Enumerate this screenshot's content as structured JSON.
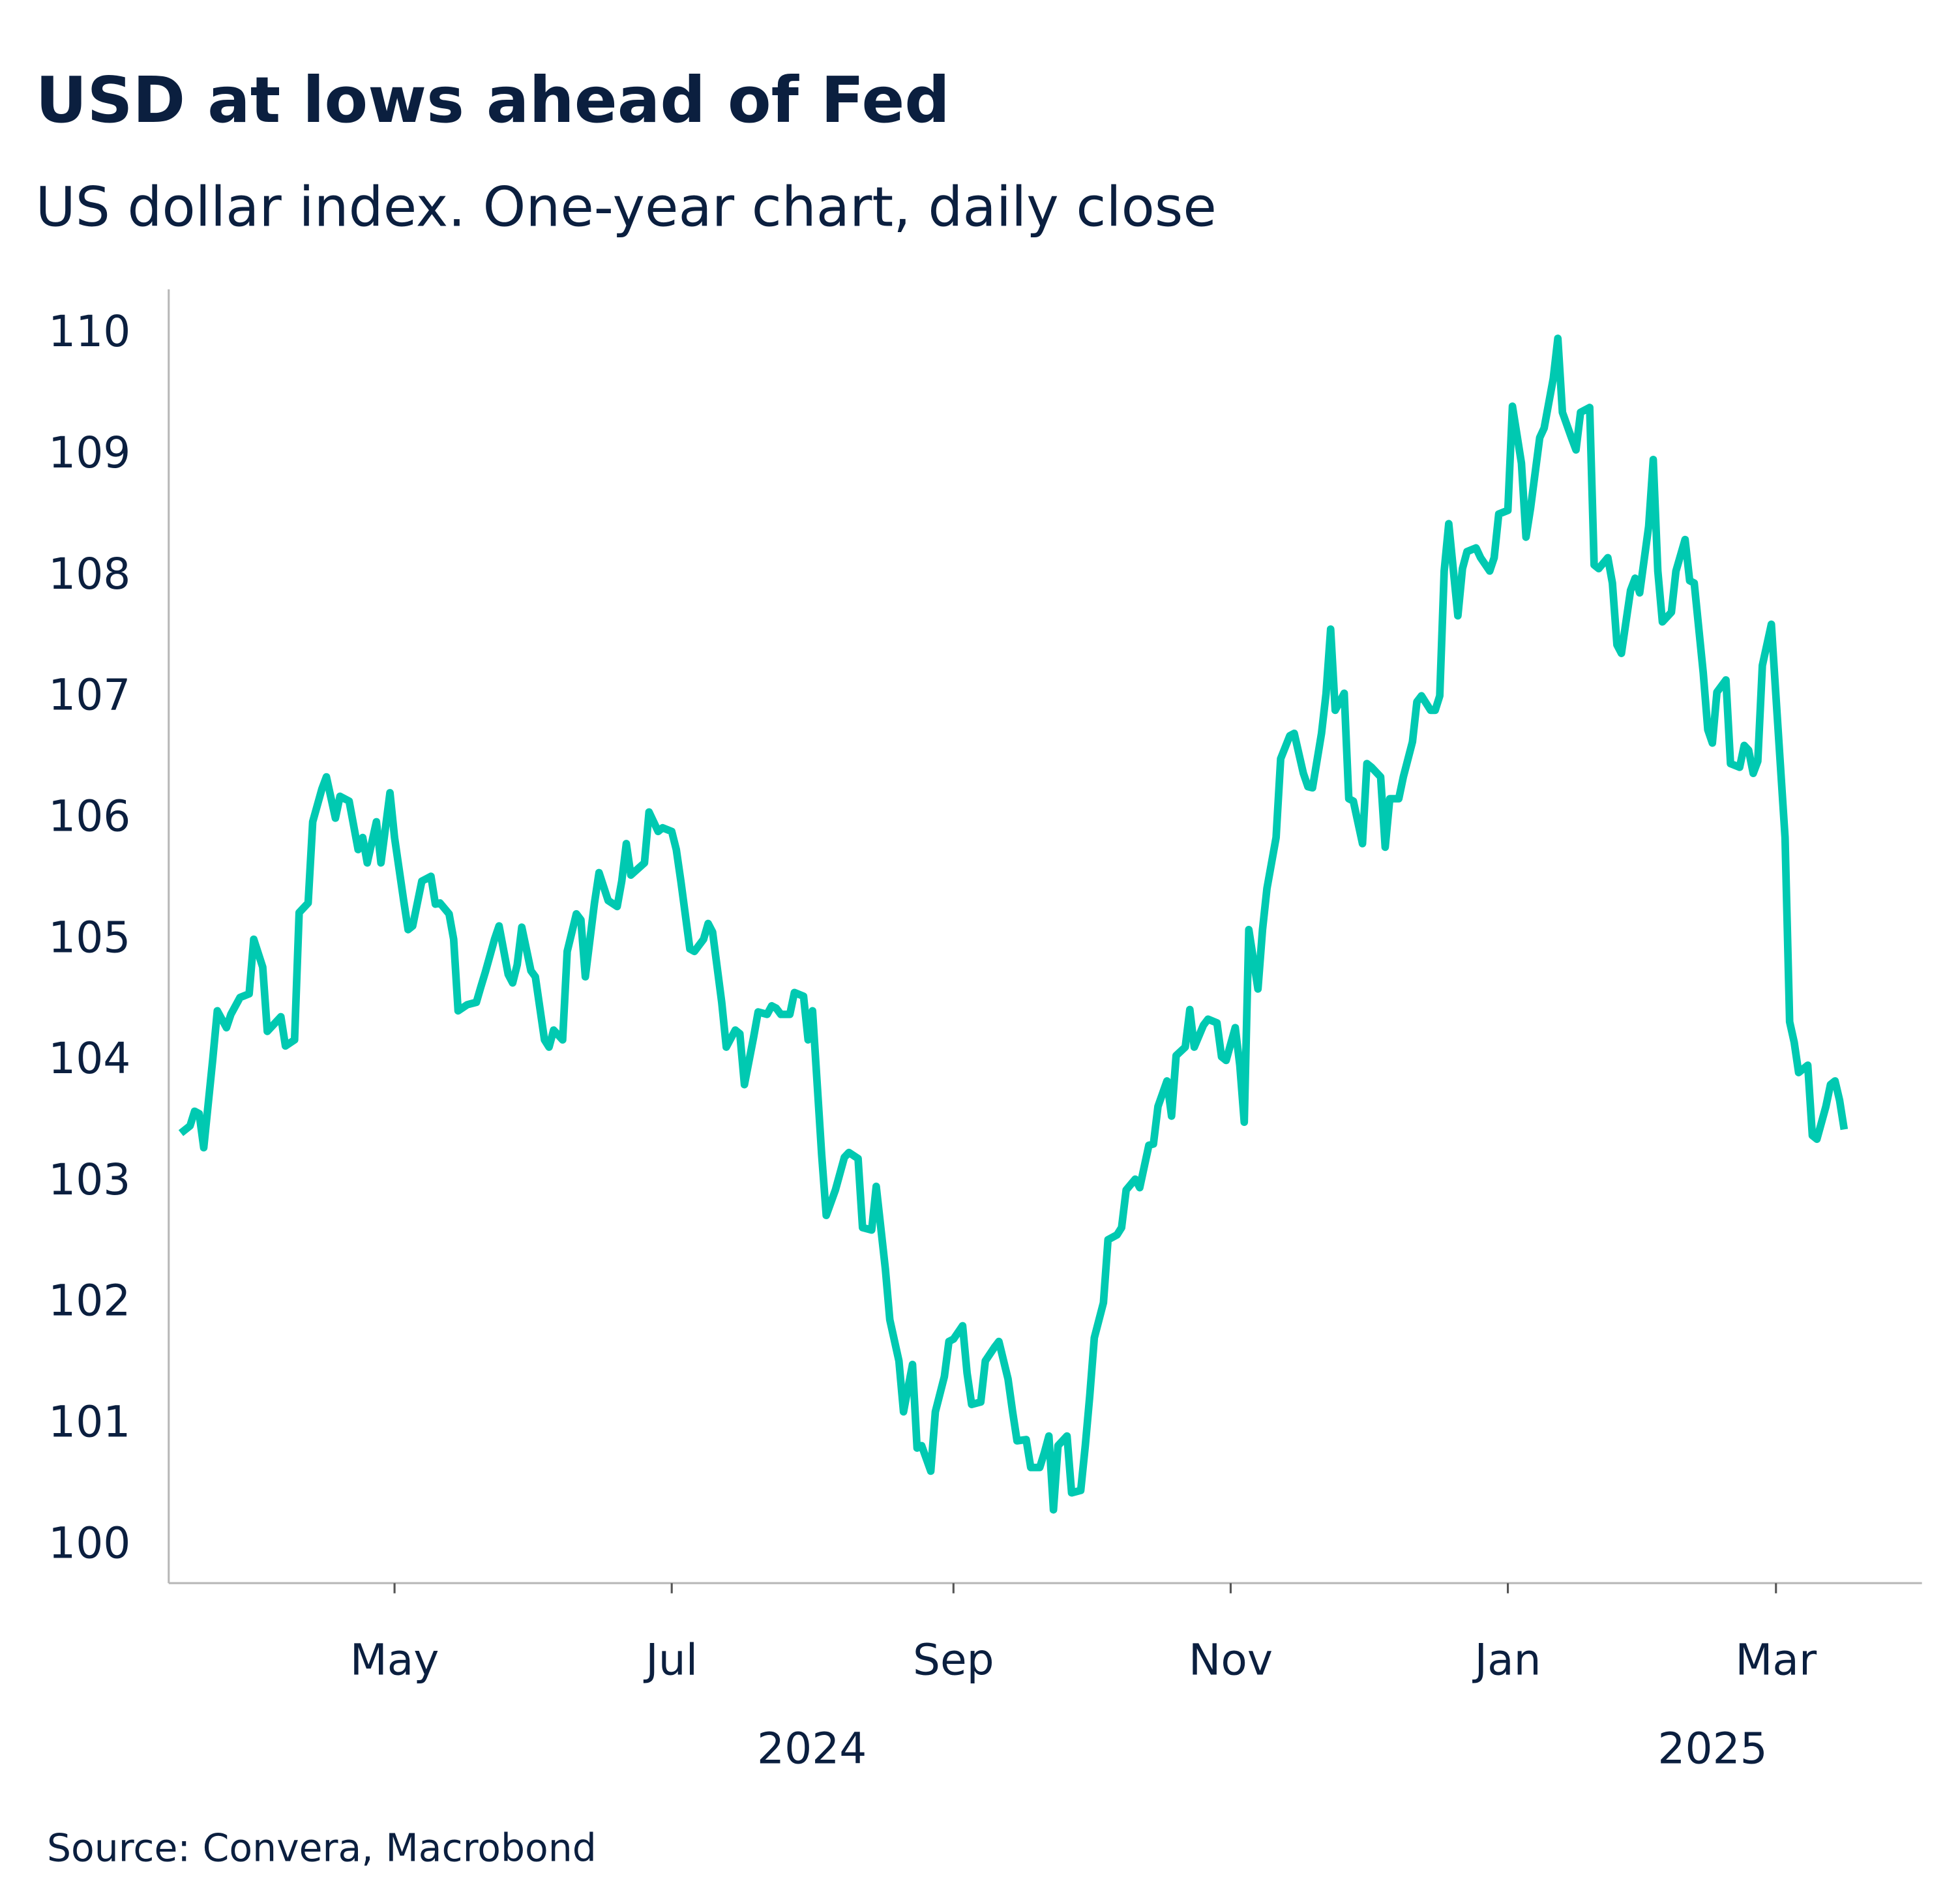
{
  "chart_data": {
    "type": "line",
    "title": "USD at lows ahead of Fed",
    "subtitle": "US dollar index. One-year chart, daily close",
    "source": "Source: Convera, Macrobond",
    "xlabel": "",
    "ylabel": "",
    "ylim": [
      100,
      110
    ],
    "yticks": [
      "100",
      "101",
      "102",
      "103",
      "104",
      "105",
      "106",
      "107",
      "108",
      "109",
      "110"
    ],
    "xticks": [
      {
        "date": "2024-05-01",
        "label": "May"
      },
      {
        "date": "2024-07-01",
        "label": "Jul"
      },
      {
        "date": "2024-09-01",
        "label": "Sep"
      },
      {
        "date": "2024-11-01",
        "label": "Nov"
      },
      {
        "date": "2025-01-01",
        "label": "Jan"
      },
      {
        "date": "2025-03-01",
        "label": "Mar"
      }
    ],
    "year_labels": [
      {
        "date": "2024-08-01",
        "label": "2024"
      },
      {
        "date": "2025-03-01",
        "label": "2025"
      }
    ],
    "grid": false,
    "line_color": "#00c9b1",
    "text_color": "#0b1f3f",
    "series": [
      {
        "dates": [
          "2024-03-15",
          "2024-03-17",
          "2024-03-18",
          "2024-03-19",
          "2024-03-20",
          "2024-03-22",
          "2024-03-23",
          "2024-03-25",
          "2024-03-26",
          "2024-03-28",
          "2024-03-30",
          "2024-03-31",
          "2024-04-02",
          "2024-04-03",
          "2024-04-06",
          "2024-04-07",
          "2024-04-09",
          "2024-04-10",
          "2024-04-12",
          "2024-04-13",
          "2024-04-15",
          "2024-04-16",
          "2024-04-18",
          "2024-04-19",
          "2024-04-21",
          "2024-04-23",
          "2024-04-24",
          "2024-04-25",
          "2024-04-27",
          "2024-04-28",
          "2024-04-30",
          "2024-05-01",
          "2024-05-03",
          "2024-05-04",
          "2024-05-05",
          "2024-05-07",
          "2024-05-09",
          "2024-05-10",
          "2024-05-11",
          "2024-05-13",
          "2024-05-14",
          "2024-05-15",
          "2024-05-17",
          "2024-05-19",
          "2024-05-20",
          "2024-05-21",
          "2024-05-23",
          "2024-05-24",
          "2024-05-26",
          "2024-05-27",
          "2024-05-28",
          "2024-05-29",
          "2024-05-31",
          "2024-06-01",
          "2024-06-03",
          "2024-06-04",
          "2024-06-05",
          "2024-06-07",
          "2024-06-08",
          "2024-06-10",
          "2024-06-11",
          "2024-06-12",
          "2024-06-14",
          "2024-06-15",
          "2024-06-17",
          "2024-06-19",
          "2024-06-20",
          "2024-06-21",
          "2024-06-22",
          "2024-06-25",
          "2024-06-26",
          "2024-06-28",
          "2024-06-29",
          "2024-07-01",
          "2024-07-02",
          "2024-07-03",
          "2024-07-05",
          "2024-07-06",
          "2024-07-08",
          "2024-07-09",
          "2024-07-10",
          "2024-07-12",
          "2024-07-13",
          "2024-07-15",
          "2024-07-16",
          "2024-07-17",
          "2024-07-19",
          "2024-07-20",
          "2024-07-22",
          "2024-07-23",
          "2024-07-24",
          "2024-07-25",
          "2024-07-27",
          "2024-07-28",
          "2024-07-30",
          "2024-07-31",
          "2024-08-01",
          "2024-08-03",
          "2024-08-04",
          "2024-08-06",
          "2024-08-08",
          "2024-08-09",
          "2024-08-11",
          "2024-08-12",
          "2024-08-14",
          "2024-08-15",
          "2024-08-17",
          "2024-08-18",
          "2024-08-20",
          "2024-08-21",
          "2024-08-23",
          "2024-08-24",
          "2024-08-25",
          "2024-08-27",
          "2024-08-28",
          "2024-08-30",
          "2024-08-31",
          "2024-09-01",
          "2024-09-03",
          "2024-09-04",
          "2024-09-05",
          "2024-09-07",
          "2024-09-08",
          "2024-09-10",
          "2024-09-11",
          "2024-09-13",
          "2024-09-14",
          "2024-09-15",
          "2024-09-17",
          "2024-09-18",
          "2024-09-20",
          "2024-09-21",
          "2024-09-22",
          "2024-09-23",
          "2024-09-24",
          "2024-09-26",
          "2024-09-27",
          "2024-09-29",
          "2024-09-30",
          "2024-10-01",
          "2024-10-02",
          "2024-10-04",
          "2024-10-05",
          "2024-10-07",
          "2024-10-08",
          "2024-10-09",
          "2024-10-11",
          "2024-10-12",
          "2024-10-14",
          "2024-10-15",
          "2024-10-16",
          "2024-10-18",
          "2024-10-19",
          "2024-10-20",
          "2024-10-22",
          "2024-10-23",
          "2024-10-24",
          "2024-10-26",
          "2024-10-27",
          "2024-10-29",
          "2024-10-30",
          "2024-10-31",
          "2024-11-02",
          "2024-11-03",
          "2024-11-04",
          "2024-11-05",
          "2024-11-07",
          "2024-11-08",
          "2024-11-09",
          "2024-11-11",
          "2024-11-12",
          "2024-11-14",
          "2024-11-15",
          "2024-11-17",
          "2024-11-18",
          "2024-11-19",
          "2024-11-21",
          "2024-11-22",
          "2024-11-23",
          "2024-11-24",
          "2024-11-26",
          "2024-11-27",
          "2024-11-28",
          "2024-11-30",
          "2024-12-01",
          "2024-12-02",
          "2024-12-04",
          "2024-12-05",
          "2024-12-06",
          "2024-12-08",
          "2024-12-09",
          "2024-12-11",
          "2024-12-12",
          "2024-12-13",
          "2024-12-15",
          "2024-12-16",
          "2024-12-17",
          "2024-12-18",
          "2024-12-19",
          "2024-12-21",
          "2024-12-22",
          "2024-12-23",
          "2024-12-25",
          "2024-12-26",
          "2024-12-28",
          "2024-12-29",
          "2024-12-30",
          "2025-01-01",
          "2025-01-02",
          "2025-01-04",
          "2025-01-05",
          "2025-01-06",
          "2025-01-08",
          "2025-01-09",
          "2025-01-11",
          "2025-01-12",
          "2025-01-13",
          "2025-01-15",
          "2025-01-16",
          "2025-01-17",
          "2025-01-19",
          "2025-01-20",
          "2025-01-21",
          "2025-01-23",
          "2025-01-24",
          "2025-01-25",
          "2025-01-26",
          "2025-01-28",
          "2025-01-29",
          "2025-01-30",
          "2025-02-01",
          "2025-02-02",
          "2025-02-03",
          "2025-02-04",
          "2025-02-06",
          "2025-02-07",
          "2025-02-09",
          "2025-02-10",
          "2025-02-11",
          "2025-02-13",
          "2025-02-14",
          "2025-02-15",
          "2025-02-16",
          "2025-02-18",
          "2025-02-19",
          "2025-02-21",
          "2025-02-22",
          "2025-02-23",
          "2025-02-24",
          "2025-02-25",
          "2025-02-26",
          "2025-02-28",
          "2025-03-01",
          "2025-03-03",
          "2025-03-04",
          "2025-03-05",
          "2025-03-06",
          "2025-03-08",
          "2025-03-09",
          "2025-03-10",
          "2025-03-12",
          "2025-03-13",
          "2025-03-14",
          "2025-03-15",
          "2025-03-16"
        ],
        "values": [
          103.38,
          103.44,
          103.56,
          103.54,
          103.26,
          103.99,
          104.39,
          104.25,
          104.36,
          104.5,
          104.53,
          104.98,
          104.75,
          104.22,
          104.34,
          104.1,
          104.15,
          105.2,
          105.28,
          105.95,
          106.22,
          106.32,
          105.98,
          106.16,
          106.12,
          105.72,
          105.82,
          105.61,
          105.95,
          105.61,
          106.19,
          105.82,
          105.3,
          105.06,
          105.09,
          105.46,
          105.5,
          105.27,
          105.28,
          105.19,
          104.98,
          104.39,
          104.44,
          104.46,
          104.59,
          104.71,
          104.98,
          105.09,
          104.69,
          104.62,
          104.77,
          105.08,
          104.72,
          104.67,
          104.15,
          104.09,
          104.23,
          104.15,
          104.88,
          105.19,
          105.14,
          104.67,
          105.28,
          105.53,
          105.3,
          105.25,
          105.46,
          105.77,
          105.51,
          105.61,
          106.03,
          105.87,
          105.9,
          105.87,
          105.72,
          105.46,
          104.9,
          104.88,
          104.98,
          105.11,
          105.04,
          104.46,
          104.09,
          104.23,
          104.2,
          103.78,
          104.17,
          104.38,
          104.36,
          104.43,
          104.41,
          104.36,
          104.36,
          104.54,
          104.51,
          104.15,
          104.39,
          103.2,
          102.7,
          102.91,
          103.18,
          103.22,
          103.17,
          102.6,
          102.58,
          102.94,
          102.26,
          101.84,
          101.5,
          101.08,
          101.47,
          100.78,
          100.8,
          100.59,
          101.08,
          101.37,
          101.66,
          101.68,
          101.79,
          101.4,
          101.14,
          101.16,
          101.5,
          101.61,
          101.66,
          101.35,
          101.08,
          100.84,
          100.85,
          100.62,
          100.62,
          100.74,
          100.88,
          100.27,
          100.8,
          100.88,
          100.41,
          100.43,
          100.8,
          101.21,
          101.69,
          101.98,
          102.5,
          102.54,
          102.6,
          102.91,
          103.0,
          102.93,
          103.28,
          103.29,
          103.6,
          103.81,
          103.52,
          104.02,
          104.09,
          104.4,
          104.09,
          104.27,
          104.32,
          104.29,
          104.01,
          103.98,
          104.25,
          103.94,
          103.47,
          105.06,
          104.57,
          105.06,
          105.4,
          105.82,
          106.47,
          106.66,
          106.68,
          106.35,
          106.24,
          106.23,
          106.68,
          107.01,
          107.54,
          106.87,
          107.01,
          106.14,
          106.12,
          105.77,
          106.43,
          106.4,
          106.32,
          105.74,
          106.14,
          106.14,
          106.32,
          106.61,
          106.94,
          106.99,
          106.87,
          106.87,
          106.99,
          108.02,
          108.41,
          107.65,
          108.04,
          108.18,
          108.21,
          108.13,
          108.02,
          108.13,
          108.49,
          108.52,
          109.38,
          108.91,
          108.3,
          108.54,
          109.12,
          109.2,
          109.61,
          109.94,
          109.33,
          109.12,
          109.02,
          109.33,
          109.37,
          108.07,
          108.04,
          108.13,
          107.92,
          107.41,
          107.34,
          107.86,
          107.96,
          107.84,
          108.39,
          108.94,
          108.02,
          107.6,
          107.68,
          108.02,
          108.28,
          107.94,
          107.92,
          107.18,
          106.71,
          106.6,
          107.02,
          107.12,
          106.43,
          106.4,
          106.58,
          106.54,
          106.35,
          106.45,
          107.24,
          107.58,
          106.99,
          105.82,
          104.3,
          104.13,
          103.88,
          103.94,
          103.36,
          103.33,
          103.6,
          103.78,
          103.81,
          103.65,
          103.41
        ]
      }
    ]
  }
}
